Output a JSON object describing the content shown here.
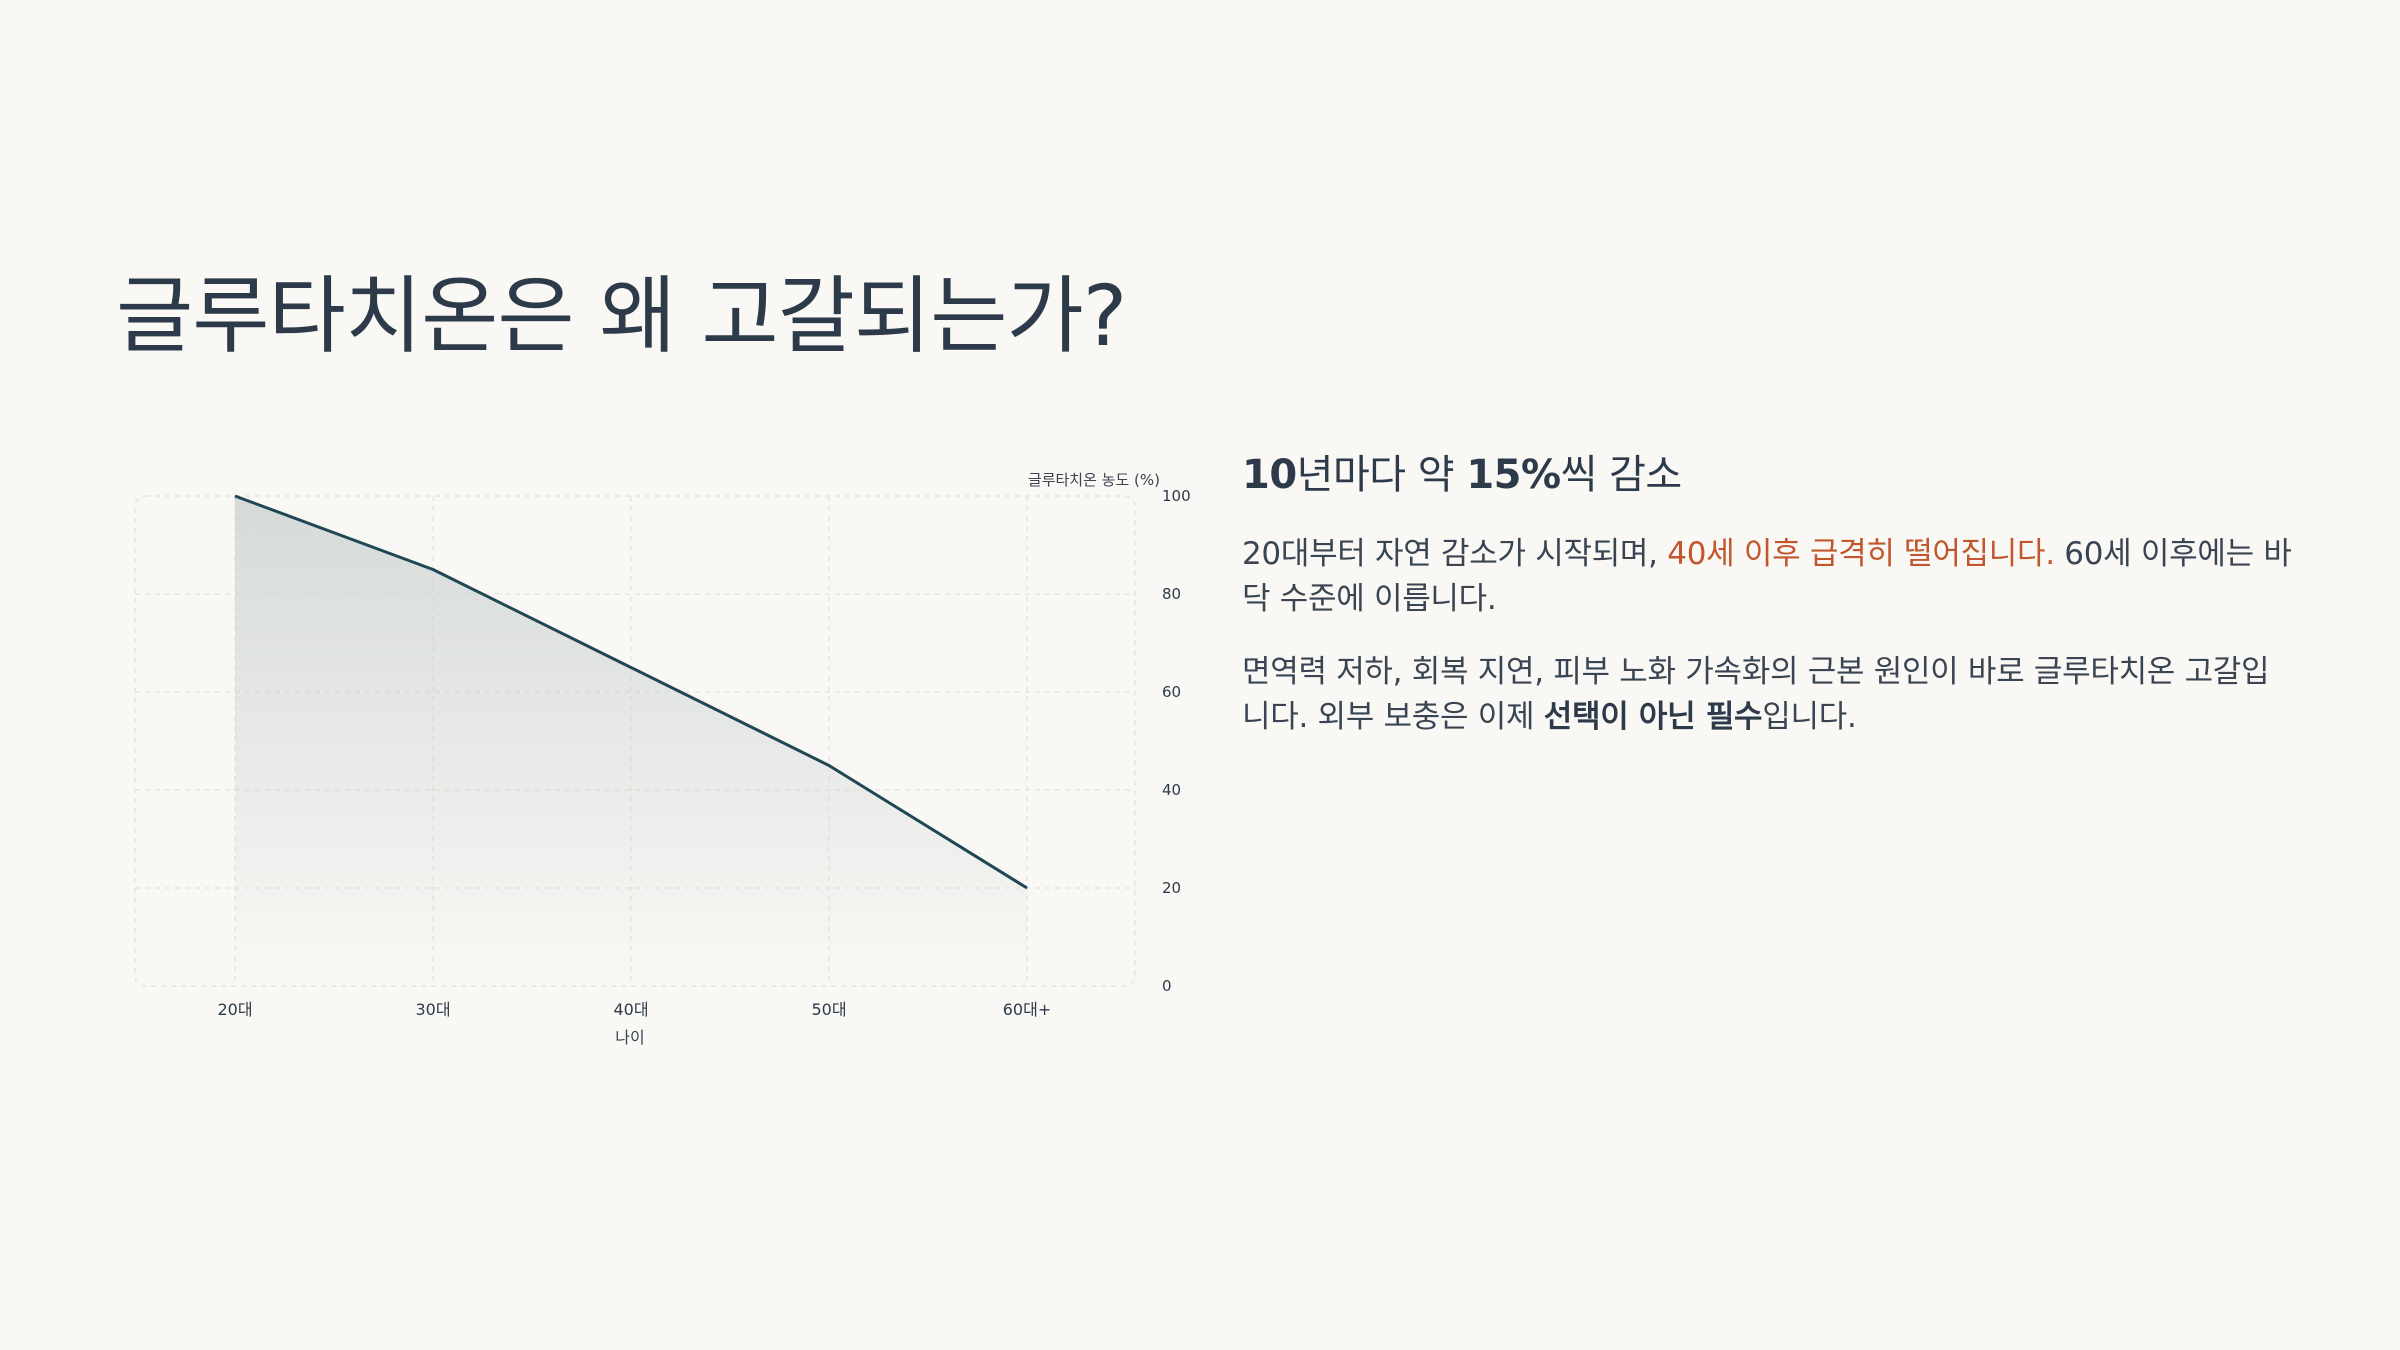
{
  "page": {
    "title": "글루타치온은 왜 고갈되는가?"
  },
  "panel": {
    "subhead_strong_a": "10",
    "subhead_plain_a": "년마다 약 ",
    "subhead_strong_b": "15%",
    "subhead_plain_b": "씩 감소",
    "p1_plain_a": "20대부터 자연 감소가 시작되며, ",
    "p1_accent": "40세 이후 급격히 떨어집니다.",
    "p1_plain_b": " 60세 이후에는 바닥 수준에 이릅니다.",
    "p2_plain_a": "면역력 저하, 회복 지연, 피부 노화 가속화의 근본 원인이 바로 글루타치온 고갈입니다. 외부 보충은 이제 ",
    "p2_bold": "선택이 아닌 필수",
    "p2_plain_b": "입니다."
  },
  "colors": {
    "background": "#f9f8f5",
    "title": "#2d3a4a",
    "accent": "#c2572e",
    "line": "#1f4756",
    "area_fill": "#c9d0cf"
  },
  "chart_data": {
    "type": "area",
    "categories": [
      "20대",
      "30대",
      "40대",
      "50대",
      "60대+"
    ],
    "values": [
      100,
      85,
      65,
      45,
      20
    ],
    "xlabel": "나이",
    "ylabel": "글루타치온 농도 (%)",
    "ylim": [
      0,
      100
    ],
    "yticks": [
      0,
      20,
      40,
      60,
      80,
      100
    ],
    "y_axis_side": "right",
    "grid": true
  }
}
